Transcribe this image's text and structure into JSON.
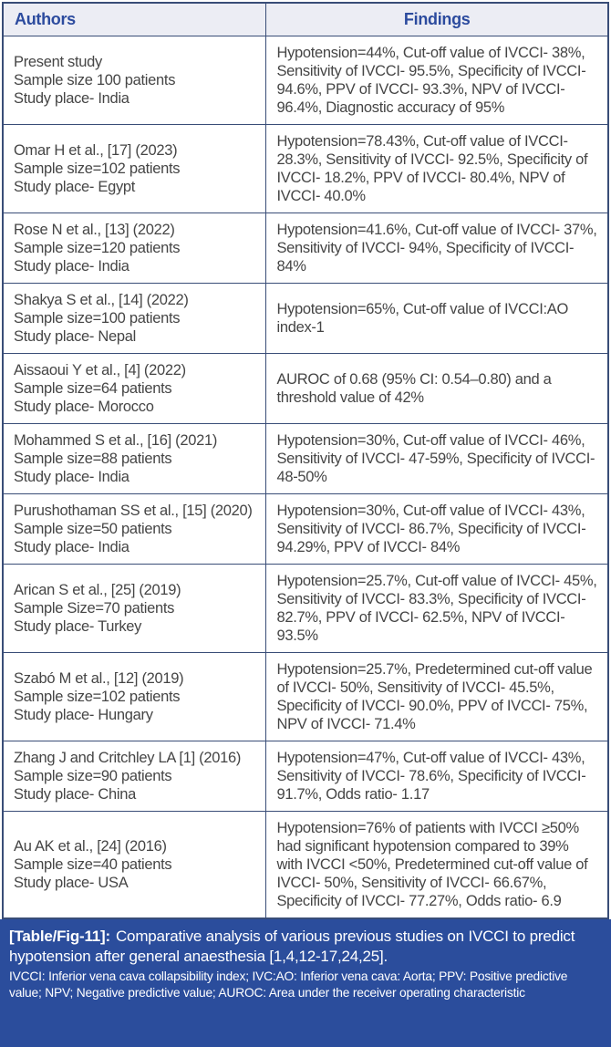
{
  "colors": {
    "border": "#394d77",
    "header_bg": "#ecedf4",
    "header_text": "#2c4b9e",
    "body_text": "#454545",
    "footer_bg": "#2b4d9c",
    "footer_text": "#ffffff"
  },
  "table": {
    "columns": [
      "Authors",
      "Findings"
    ],
    "rows": [
      {
        "author_lines": [
          "Present study",
          "Sample size 100 patients",
          "Study place- India"
        ],
        "findings": "Hypotension=44%, Cut-off value of IVCCI- 38%, Sensitivity of IVCCI- 95.5%, Specificity of IVCCI- 94.6%, PPV of IVCCI- 93.3%, NPV of IVCCI- 96.4%, Diagnostic accuracy of 95%"
      },
      {
        "author_lines": [
          "Omar H et al., [17] (2023)",
          "Sample size=102 patients",
          "Study place- Egypt"
        ],
        "findings": "Hypotension=78.43%, Cut-off value of IVCCI- 28.3%, Sensitivity of IVCCI- 92.5%, Specificity of IVCCI- 18.2%, PPV of IVCCI- 80.4%, NPV of IVCCI- 40.0%"
      },
      {
        "author_lines": [
          "Rose N et al., [13] (2022)",
          "Sample size=120 patients",
          "Study place- India"
        ],
        "findings": "Hypotension=41.6%, Cut-off value of IVCCI- 37%, Sensitivity of IVCCI- 94%, Specificity of IVCCI- 84%"
      },
      {
        "author_lines": [
          "Shakya S et al., [14] (2022)",
          "Sample size=100 patients",
          "Study place- Nepal"
        ],
        "findings": "Hypotension=65%, Cut-off value of IVCCI:AO index-1"
      },
      {
        "author_lines": [
          "Aissaoui Y et al., [4] (2022)",
          "Sample size=64 patients",
          "Study place- Morocco"
        ],
        "findings": "AUROC of 0.68 (95% CI: 0.54–0.80) and a threshold value of 42%"
      },
      {
        "author_lines": [
          "Mohammed S et al., [16] (2021)",
          "Sample size=88 patients",
          "Study place- India"
        ],
        "findings": "Hypotension=30%, Cut-off value of IVCCI- 46%, Sensitivity of IVCCI- 47-59%, Specificity of IVCCI- 48-50%"
      },
      {
        "author_lines": [
          "Purushothaman SS et al., [15] (2020)",
          "Sample size=50 patients",
          "Study place- India"
        ],
        "findings": "Hypotension=30%, Cut-off value of IVCCI- 43%, Sensitivity of IVCCI- 86.7%, Specificity of IVCCI- 94.29%, PPV of IVCCI- 84%"
      },
      {
        "author_lines": [
          "Arican S et al., [25] (2019)",
          "Sample Size=70 patients",
          "Study place- Turkey"
        ],
        "findings": "Hypotension=25.7%, Cut-off value of IVCCI- 45%, Sensitivity of IVCCI- 83.3%, Specificity of IVCCI- 82.7%, PPV of IVCCI- 62.5%, NPV of IVCCI- 93.5%"
      },
      {
        "author_lines": [
          "Szabó M et al., [12] (2019)",
          "Sample size=102 patients",
          "Study place- Hungary"
        ],
        "findings": "Hypotension=25.7%, Predetermined cut-off value of IVCCI- 50%, Sensitivity of IVCCI- 45.5%, Specificity of IVCCI- 90.0%, PPV of IVCCI- 75%, NPV of IVCCI- 71.4%"
      },
      {
        "author_lines": [
          "Zhang J and Critchley LA [1] (2016)",
          "Sample size=90 patients",
          "Study place- China"
        ],
        "findings": "Hypotension=47%, Cut-off value of IVCCI- 43%, Sensitivity of IVCCI- 78.6%, Specificity of IVCCI- 91.7%, Odds ratio- 1.17"
      },
      {
        "author_lines": [
          "Au AK et al., [24] (2016)",
          "Sample size=40 patients",
          "Study place- USA"
        ],
        "findings": "Hypotension=76% of patients with IVCCI ≥50% had significant hypotension compared to 39% with IVCCI <50%, Predetermined cut-off value of IVCCI- 50%, Sensitivity of IVCCI- 66.67%, Specificity of IVCCI- 77.27%, Odds ratio- 6.9"
      }
    ]
  },
  "caption": {
    "label": "[Table/Fig-11]:",
    "text": "Comparative analysis of various previous studies on IVCCI to predict hypotension after general anaesthesia [1,4,12-17,24,25]."
  },
  "footnote": "IVCCI: Inferior vena cava collapsibility index; IVC:AO: Inferior vena cava: Aorta; PPV: Positive predictive value; NPV; Negative predictive value; AUROC: Area under the receiver operating characteristic"
}
